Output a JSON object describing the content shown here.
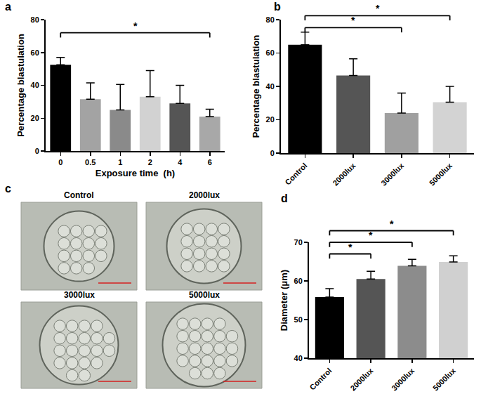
{
  "chart_data": [
    {
      "panel": "a",
      "type": "bar",
      "categories": [
        "0",
        "0.5",
        "1",
        "2",
        "4",
        "6"
      ],
      "values": [
        52.5,
        31.5,
        25,
        33,
        29,
        21
      ],
      "errors": [
        4.5,
        10,
        15.5,
        16,
        11,
        4.5
      ],
      "colors": [
        "#000000",
        "#a3a3a3",
        "#8a8a8a",
        "#d2d2d2",
        "#555555",
        "#a8a8a8"
      ],
      "x_label": "Exposure time  (h)",
      "y_label": "Percentage blastulation",
      "ylim": [
        0,
        80
      ],
      "yticks": [
        0,
        20,
        40,
        60,
        80
      ],
      "significance": [
        {
          "from": "0",
          "to": "6",
          "text": "*"
        }
      ]
    },
    {
      "panel": "b",
      "type": "bar",
      "categories": [
        "Control",
        "2000lux",
        "3000lux",
        "5000lux"
      ],
      "values": [
        65,
        46.5,
        24,
        30.5
      ],
      "errors": [
        7.5,
        10,
        12,
        9.5
      ],
      "colors": [
        "#000000",
        "#555555",
        "#a0a0a0",
        "#d3d3d3"
      ],
      "y_label": "Percentage blastulation",
      "ylim": [
        0,
        80
      ],
      "yticks": [
        0,
        20,
        40,
        60,
        80
      ],
      "significance": [
        {
          "from": "Control",
          "to": "3000lux",
          "text": "*"
        },
        {
          "from": "Control",
          "to": "5000lux",
          "text": "*"
        }
      ]
    },
    {
      "panel": "c",
      "type": "images",
      "labels": [
        "Control",
        "2000lux",
        "3000lux",
        "5000lux"
      ]
    },
    {
      "panel": "d",
      "type": "bar",
      "categories": [
        "Control",
        "2000lux",
        "3000lux",
        "5000lux"
      ],
      "values": [
        55.8,
        60.5,
        63.9,
        64.9
      ],
      "errors": [
        2.2,
        2.0,
        1.7,
        1.6
      ],
      "colors": [
        "#000000",
        "#555555",
        "#8c8c8c",
        "#d0d0d0"
      ],
      "y_label": "Diameter (μm)",
      "ylim": [
        40,
        70
      ],
      "yticks": [
        40,
        50,
        60,
        70
      ],
      "significance": [
        {
          "from": "Control",
          "to": "2000lux",
          "text": "*"
        },
        {
          "from": "Control",
          "to": "3000lux",
          "text": "*"
        },
        {
          "from": "Control",
          "to": "5000lux",
          "text": "*"
        }
      ]
    }
  ]
}
